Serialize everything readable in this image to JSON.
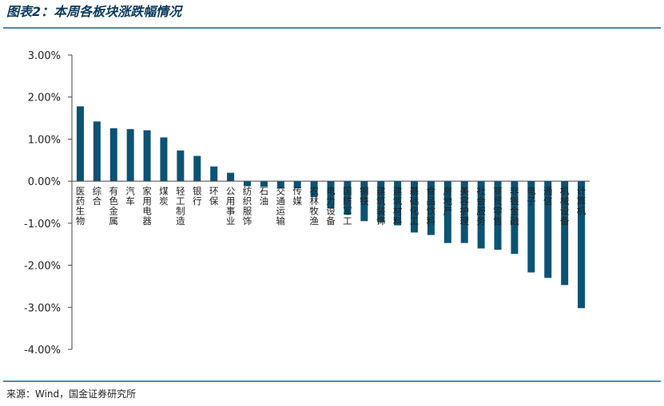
{
  "title": "图表2：本周各板块涨跌幅情况",
  "source": "来源：Wind，国金证券研究所",
  "chart_data": {
    "type": "bar",
    "color": "#0b5374",
    "categories": [
      "医药生物",
      "综合",
      "有色金属",
      "汽车",
      "家用电器",
      "煤炭",
      "轻工制造",
      "银行",
      "环保",
      "公用事业",
      "纺织服饰",
      "石油",
      "交通运输",
      "传媒",
      "农林牧渔",
      "电力设备",
      "国防军工",
      "钢铁",
      "建筑装饰",
      "建筑材料",
      "基础化工",
      "食品饮料",
      "房地产",
      "美容护理",
      "社会服务",
      "商贸零售",
      "非银金融",
      "电子",
      "通信",
      "机械设备",
      "计算机"
    ],
    "values": [
      1.78,
      1.42,
      1.26,
      1.24,
      1.21,
      1.04,
      0.73,
      0.6,
      0.35,
      0.2,
      -0.12,
      -0.13,
      -0.17,
      -0.17,
      -0.38,
      -0.65,
      -0.8,
      -0.95,
      -0.98,
      -1.05,
      -1.22,
      -1.28,
      -1.47,
      -1.47,
      -1.6,
      -1.63,
      -1.73,
      -2.17,
      -2.3,
      -2.47,
      -3.02
    ],
    "ylim": [
      -4,
      3
    ],
    "yticks": [
      {
        "value": 3,
        "label": "3.00%"
      },
      {
        "value": 2,
        "label": "2.00%"
      },
      {
        "value": 1,
        "label": "1.00%"
      },
      {
        "value": 0,
        "label": "0.00%"
      },
      {
        "value": -1,
        "label": "-1.00%"
      },
      {
        "value": -2,
        "label": "-2.00%"
      },
      {
        "value": -3,
        "label": "-3.00%"
      },
      {
        "value": -4,
        "label": "-4.00%"
      }
    ]
  }
}
